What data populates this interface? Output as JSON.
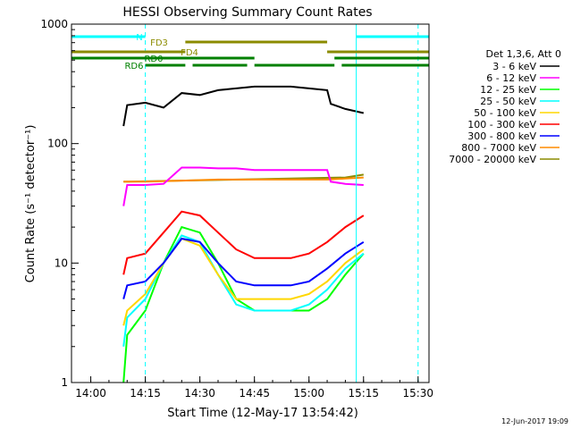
{
  "chart_data": {
    "type": "line",
    "title": "HESSI Observing Summary Count Rates",
    "xlabel": "Start Time (12-May-17 13:54:42)",
    "ylabel": "Count Rate (s⁻¹ detector⁻¹)",
    "yscale": "log",
    "ylim": [
      1,
      1000
    ],
    "xlim": [
      "13:54:42",
      "15:33"
    ],
    "x_ticks": [
      "14:00",
      "14:15",
      "14:30",
      "14:45",
      "15:00",
      "15:15",
      "15:30"
    ],
    "y_ticks": [
      "1",
      "10",
      "100",
      "1000"
    ],
    "grid": false,
    "legend": {
      "title": "Det 1,3,6, Att 0",
      "placement": "right",
      "entries": [
        {
          "label": "3 - 6 keV",
          "color": "#000000"
        },
        {
          "label": "6 - 12 keV",
          "color": "#ff00ff"
        },
        {
          "label": "12 - 25 keV",
          "color": "#00ff00"
        },
        {
          "label": "25 - 50 keV",
          "color": "#00ffff"
        },
        {
          "label": "50 - 100 keV",
          "color": "#ffd700"
        },
        {
          "label": "100 - 300 keV",
          "color": "#ff0000"
        },
        {
          "label": "300 - 800 keV",
          "color": "#0000ff"
        },
        {
          "label": "800 - 7000 keV",
          "color": "#ff8c00"
        },
        {
          "label": "7000 - 20000 keV",
          "color": "#8b8b00"
        }
      ]
    },
    "series": [
      {
        "name": "3 - 6 keV",
        "color": "#000000",
        "x": [
          "14:09",
          "14:10",
          "14:15",
          "14:20",
          "14:25",
          "14:30",
          "14:35",
          "14:40",
          "14:45",
          "14:50",
          "14:55",
          "15:00",
          "15:05",
          "15:06",
          "15:10",
          "15:15"
        ],
        "values": [
          140,
          210,
          220,
          200,
          265,
          255,
          280,
          290,
          300,
          300,
          300,
          290,
          280,
          215,
          195,
          180
        ]
      },
      {
        "name": "6 - 12 keV",
        "color": "#ff00ff",
        "x": [
          "14:09",
          "14:10",
          "14:15",
          "14:20",
          "14:25",
          "14:30",
          "14:35",
          "14:40",
          "14:45",
          "14:50",
          "14:55",
          "15:00",
          "15:05",
          "15:06",
          "15:10",
          "15:15"
        ],
        "values": [
          30,
          45,
          45,
          46,
          63,
          63,
          62,
          62,
          60,
          60,
          60,
          60,
          60,
          48,
          46,
          45
        ]
      },
      {
        "name": "12 - 25 keV",
        "color": "#00ff00",
        "x": [
          "14:09",
          "14:10",
          "14:15",
          "14:20",
          "14:25",
          "14:30",
          "14:35",
          "14:40",
          "14:45",
          "14:50",
          "14:55",
          "15:00",
          "15:05",
          "15:10",
          "15:15"
        ],
        "values": [
          1,
          2.5,
          4,
          10,
          20,
          18,
          10,
          5,
          4,
          4,
          4,
          4,
          5,
          8,
          12
        ]
      },
      {
        "name": "25 - 50 keV",
        "color": "#00ffff",
        "x": [
          "14:09",
          "14:10",
          "14:15",
          "14:20",
          "14:25",
          "14:30",
          "14:35",
          "14:40",
          "14:45",
          "14:50",
          "14:55",
          "15:00",
          "15:05",
          "15:10",
          "15:15"
        ],
        "values": [
          2,
          3.5,
          5,
          10,
          17,
          15,
          8,
          4.5,
          4,
          4,
          4,
          4.5,
          6,
          9,
          12
        ]
      },
      {
        "name": "50 - 100 keV",
        "color": "#ffd700",
        "x": [
          "14:09",
          "14:10",
          "14:15",
          "14:20",
          "14:25",
          "14:30",
          "14:35",
          "14:40",
          "14:45",
          "14:50",
          "14:55",
          "15:00",
          "15:05",
          "15:10",
          "15:15"
        ],
        "values": [
          3,
          4,
          5.5,
          10,
          16,
          14,
          8,
          5,
          5,
          5,
          5,
          5.5,
          7,
          10,
          13
        ]
      },
      {
        "name": "100 - 300 keV",
        "color": "#ff0000",
        "x": [
          "14:09",
          "14:10",
          "14:15",
          "14:20",
          "14:25",
          "14:30",
          "14:35",
          "14:40",
          "14:45",
          "14:50",
          "14:55",
          "15:00",
          "15:05",
          "15:10",
          "15:15"
        ],
        "values": [
          8,
          11,
          12,
          18,
          27,
          25,
          18,
          13,
          11,
          11,
          11,
          12,
          15,
          20,
          25
        ]
      },
      {
        "name": "300 - 800 keV",
        "color": "#0000ff",
        "x": [
          "14:09",
          "14:10",
          "14:15",
          "14:20",
          "14:25",
          "14:30",
          "14:35",
          "14:40",
          "14:45",
          "14:50",
          "14:55",
          "15:00",
          "15:05",
          "15:10",
          "15:15"
        ],
        "values": [
          5,
          6.5,
          7,
          10,
          16,
          15,
          10,
          7,
          6.5,
          6.5,
          6.5,
          7,
          9,
          12,
          15
        ]
      },
      {
        "name": "800 - 7000 keV",
        "color": "#ff8c00",
        "x": [
          "14:09",
          "14:10",
          "14:15",
          "14:25",
          "14:35",
          "14:45",
          "14:55",
          "15:05",
          "15:10",
          "15:15"
        ],
        "values": [
          48,
          48,
          48,
          49,
          50,
          50,
          50,
          50,
          51,
          52
        ]
      },
      {
        "name": "7000 - 20000 keV",
        "color": "#8b8b00",
        "x": [
          "14:09",
          "14:10",
          "15:10",
          "15:15"
        ],
        "values": [
          48,
          48,
          52,
          55
        ]
      }
    ],
    "flags": [
      {
        "label": "N",
        "color": "#00ffff",
        "segments": [
          [
            "13:54:42",
            "14:15"
          ],
          [
            "15:13",
            "15:33"
          ]
        ]
      },
      {
        "label": "FD3",
        "color": "#8b8b00",
        "segments": [
          [
            "14:26",
            "15:05"
          ]
        ]
      },
      {
        "label": "FD4",
        "color": "#8b8b00",
        "segments": [
          [
            "13:54:42",
            "14:26"
          ],
          [
            "15:05",
            "15:33"
          ]
        ]
      },
      {
        "label": "RD0",
        "color": "#008000",
        "segments": [
          [
            "13:54:42",
            "14:45"
          ],
          [
            "15:07",
            "15:33"
          ]
        ]
      },
      {
        "label": "RD6",
        "color": "#008000",
        "segments": [
          [
            "14:15",
            "14:26"
          ],
          [
            "14:28",
            "14:43"
          ],
          [
            "14:45",
            "15:07"
          ],
          [
            "15:09",
            "15:33"
          ]
        ]
      }
    ],
    "vertical_lines": [
      {
        "x": "13:54:42",
        "color": "#00ffff",
        "style": "solid"
      },
      {
        "x": "14:15",
        "color": "#00ffff",
        "style": "dashed"
      },
      {
        "x": "15:13",
        "color": "#00ffff",
        "style": "solid"
      },
      {
        "x": "15:30",
        "color": "#00ffff",
        "style": "dashed"
      }
    ],
    "footer_date": "12-Jun-2017 19:09"
  }
}
